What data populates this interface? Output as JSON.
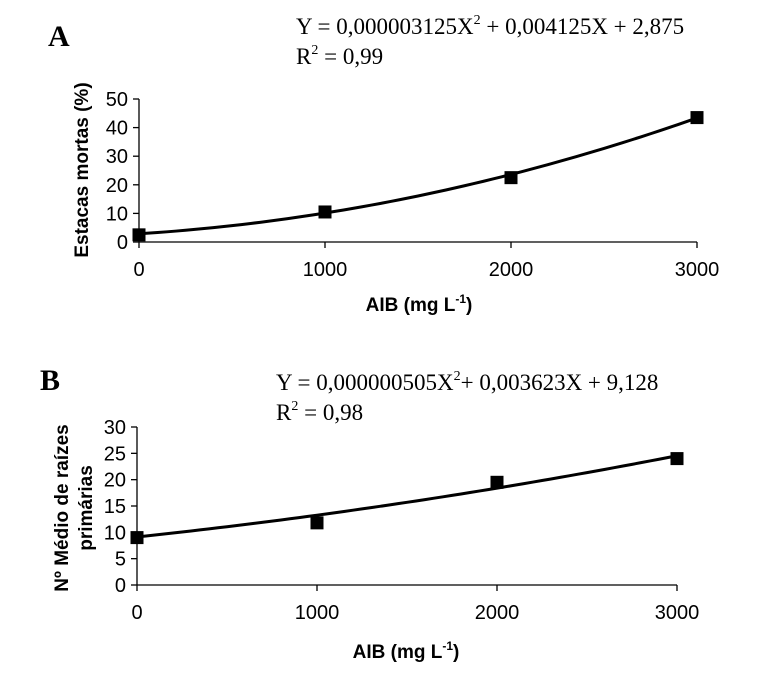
{
  "chart_data": [
    {
      "panel": "A",
      "type": "scatter",
      "equation": {
        "prefix": "Y = 0,000003125X",
        "exp": "2",
        "suffix": " + 0,004125X + 2,875"
      },
      "r2": {
        "prefix": "R",
        "exp": "2",
        "suffix": " = 0,99"
      },
      "xlabel": {
        "main": "AIB (mg L",
        "exp": "-1",
        "close": ")"
      },
      "ylabel": [
        "Estacas mortas (%)"
      ],
      "xlim": [
        0,
        3000
      ],
      "ylim": [
        0,
        50
      ],
      "xticks": [
        "0",
        "1000",
        "2000",
        "3000"
      ],
      "yticks": [
        "0",
        "10",
        "20",
        "30",
        "40",
        "50"
      ],
      "grid": false,
      "series": [
        {
          "x": [
            0,
            1000,
            2000,
            3000
          ],
          "y": [
            2.5,
            10.5,
            22.5,
            43.5
          ]
        }
      ],
      "trendline": {
        "type": "polynomial",
        "coefficients": [
          3.125e-06,
          0.004125,
          2.875
        ]
      }
    },
    {
      "panel": "B",
      "type": "scatter",
      "equation": {
        "prefix": "Y = 0,000000505X",
        "exp": "2",
        "suffix": "+ 0,003623X + 9,128"
      },
      "r2": {
        "prefix": "R",
        "exp": "2",
        "suffix": " = 0,98"
      },
      "xlabel": {
        "main": "AIB (mg L",
        "exp": "-1",
        "close": ")"
      },
      "ylabel": [
        "Nº Médio de raízes",
        "primárias"
      ],
      "xlim": [
        0,
        3000
      ],
      "ylim": [
        0,
        30
      ],
      "xticks": [
        "0",
        "1000",
        "2000",
        "3000"
      ],
      "yticks": [
        "0",
        "5",
        "10",
        "15",
        "20",
        "25",
        "30"
      ],
      "grid": false,
      "series": [
        {
          "x": [
            0,
            1000,
            2000,
            3000
          ],
          "y": [
            9,
            11.8,
            19.5,
            24
          ]
        }
      ],
      "trendline": {
        "type": "polynomial",
        "coefficients": [
          5.05e-07,
          0.003623,
          9.128
        ]
      }
    }
  ]
}
